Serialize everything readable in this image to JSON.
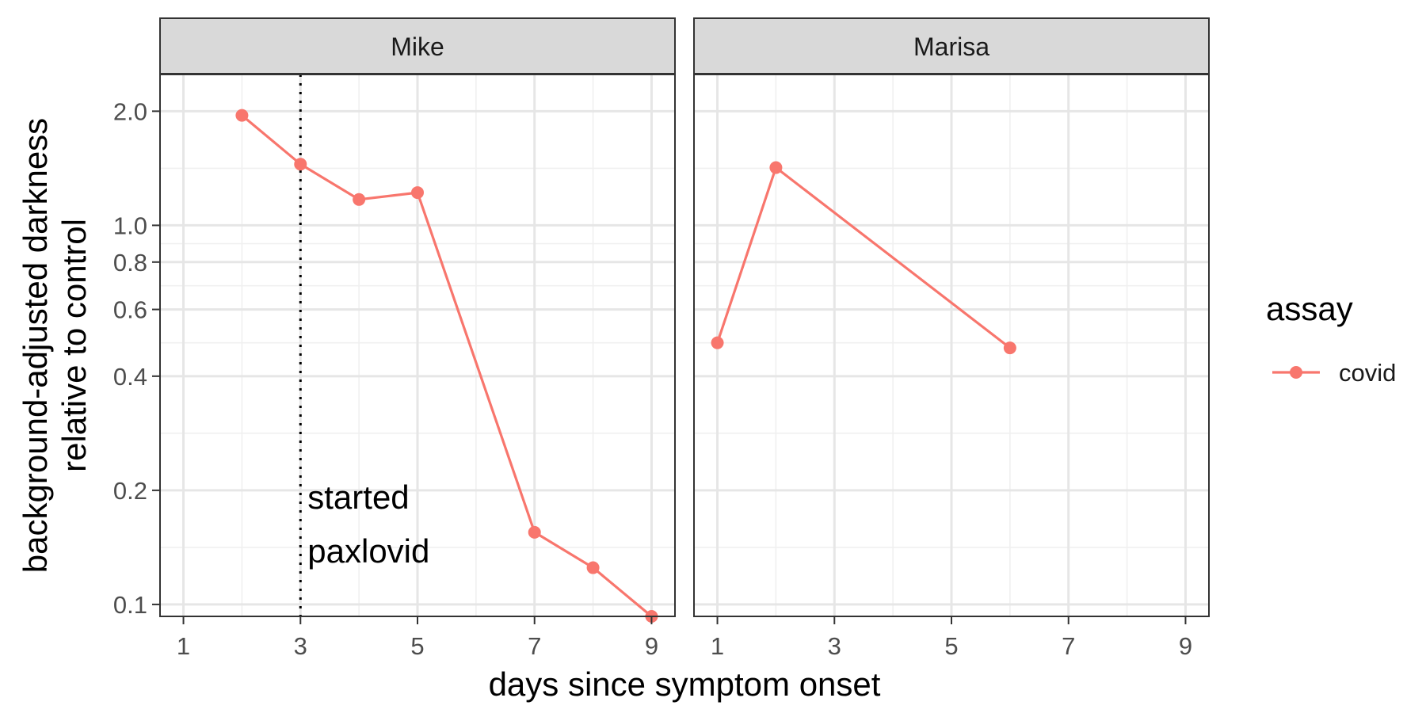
{
  "chart_data": {
    "type": "line",
    "xlabel": "days since symptom onset",
    "ylabel_lines": [
      "background-adjusted darkness",
      "relative to control"
    ],
    "y_scale": "log",
    "ylim": [
      0.093,
      2.5
    ],
    "yticks": [
      0.1,
      0.2,
      0.4,
      0.6,
      0.8,
      1.0,
      2.0
    ],
    "ytick_labels": [
      "0.1",
      "0.2",
      "0.4",
      "0.6",
      "0.8",
      "1.0",
      "2.0"
    ],
    "xlim": [
      0.6,
      9.4
    ],
    "xticks": [
      1,
      3,
      5,
      7,
      9
    ],
    "xtick_labels": [
      "1",
      "3",
      "5",
      "7",
      "9"
    ],
    "grid": true,
    "legend": {
      "title": "assay",
      "position": "right",
      "entries": [
        {
          "label": "covid",
          "color": "#f8766d"
        }
      ]
    },
    "panels": [
      {
        "strip": "Mike",
        "series": [
          {
            "name": "covid",
            "color": "#f8766d",
            "x": [
              2,
              3,
              4,
              5,
              7,
              8,
              9
            ],
            "y": [
              1.95,
              1.45,
              1.17,
              1.22,
              0.155,
              0.125,
              0.093
            ]
          }
        ],
        "vline": {
          "x": 3,
          "style": "dotted"
        },
        "annotation": {
          "lines": [
            "started",
            "paxlovid"
          ],
          "x": 3
        }
      },
      {
        "strip": "Marisa",
        "series": [
          {
            "name": "covid",
            "color": "#f8766d",
            "x": [
              1,
              2,
              6
            ],
            "y": [
              0.49,
              1.42,
              0.475
            ]
          }
        ]
      }
    ]
  }
}
